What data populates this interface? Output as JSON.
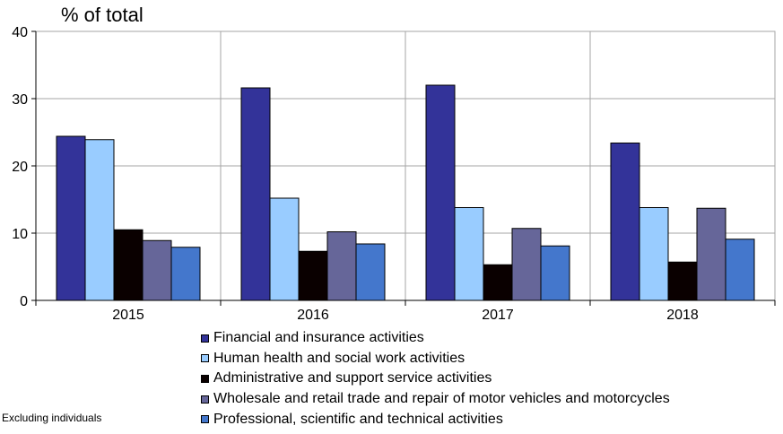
{
  "chart_data": {
    "type": "bar",
    "unit_label": "% of total",
    "categories": [
      "2015",
      "2016",
      "2017",
      "2018"
    ],
    "ylim": [
      0,
      40
    ],
    "yticks": [
      0,
      10,
      20,
      30,
      40
    ],
    "grid": true,
    "legend_position": "bottom",
    "series": [
      {
        "name": "Financial and insurance activities",
        "color": "#333399",
        "values": [
          24.4,
          31.6,
          32.0,
          23.4
        ]
      },
      {
        "name": "Human health and social work activities",
        "color": "#99ccff",
        "values": [
          23.9,
          15.2,
          13.8,
          13.8
        ]
      },
      {
        "name": "Administrative and support service activities",
        "color": "#0a0000",
        "values": [
          10.5,
          7.3,
          5.3,
          5.7
        ]
      },
      {
        "name": "Wholesale and retail trade and repair of motor vehicles and motorcycles",
        "color": "#666699",
        "values": [
          8.9,
          10.2,
          10.7,
          13.7
        ]
      },
      {
        "name": "Professional, scientific and technical activities",
        "color": "#4477cc",
        "values": [
          7.9,
          8.4,
          8.1,
          9.1
        ]
      }
    ],
    "note": "Excluding individuals"
  }
}
